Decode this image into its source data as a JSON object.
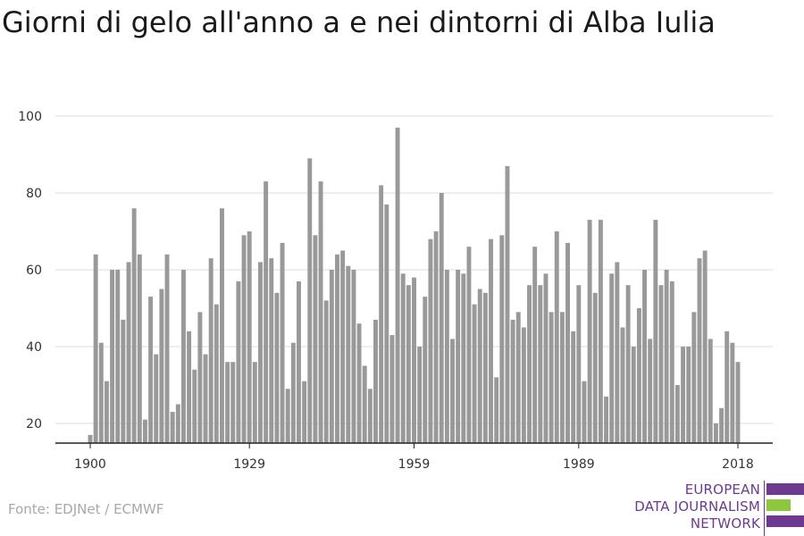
{
  "title": "Giorni di gelo all'anno a e nei dintorni di Alba Iulia",
  "source": "Fonte: EDJNet / ECMWF",
  "logo": {
    "lines": [
      "EUROPEAN",
      "DATA JOURNALISM",
      "NETWORK"
    ],
    "colors": {
      "purple": "#6d3a90",
      "green": "#8dc63f"
    }
  },
  "chart_data": {
    "type": "bar",
    "title": "Giorni di gelo all'anno a e nei dintorni di Alba Iulia",
    "xlabel": "",
    "ylabel": "",
    "x_start": 1900,
    "x": [
      1900,
      1901,
      1902,
      1903,
      1904,
      1905,
      1906,
      1907,
      1908,
      1909,
      1910,
      1911,
      1912,
      1913,
      1914,
      1915,
      1916,
      1917,
      1918,
      1919,
      1920,
      1921,
      1922,
      1923,
      1924,
      1925,
      1926,
      1927,
      1928,
      1929,
      1930,
      1931,
      1932,
      1933,
      1934,
      1935,
      1936,
      1937,
      1938,
      1939,
      1940,
      1941,
      1942,
      1943,
      1944,
      1945,
      1946,
      1947,
      1948,
      1949,
      1950,
      1951,
      1952,
      1953,
      1954,
      1955,
      1956,
      1957,
      1958,
      1959,
      1960,
      1961,
      1962,
      1963,
      1964,
      1965,
      1966,
      1967,
      1968,
      1969,
      1970,
      1971,
      1972,
      1973,
      1974,
      1975,
      1976,
      1977,
      1978,
      1979,
      1980,
      1981,
      1982,
      1983,
      1984,
      1985,
      1986,
      1987,
      1988,
      1989,
      1990,
      1991,
      1992,
      1993,
      1994,
      1995,
      1996,
      1997,
      1998,
      1999,
      2000,
      2001,
      2002,
      2003,
      2004,
      2005,
      2006,
      2007,
      2008,
      2009,
      2010,
      2011,
      2012,
      2013,
      2014,
      2015,
      2016,
      2017,
      2018
    ],
    "values": [
      17,
      64,
      41,
      31,
      60,
      60,
      47,
      62,
      76,
      64,
      21,
      53,
      38,
      55,
      64,
      23,
      25,
      60,
      44,
      34,
      49,
      38,
      63,
      51,
      76,
      36,
      36,
      57,
      69,
      70,
      36,
      62,
      83,
      63,
      54,
      67,
      29,
      41,
      57,
      31,
      89,
      69,
      83,
      52,
      60,
      64,
      65,
      61,
      60,
      46,
      35,
      29,
      47,
      82,
      77,
      43,
      97,
      59,
      56,
      58,
      40,
      53,
      68,
      70,
      80,
      60,
      42,
      60,
      59,
      66,
      51,
      55,
      54,
      68,
      32,
      69,
      87,
      47,
      49,
      45,
      56,
      66,
      56,
      59,
      49,
      70,
      49,
      67,
      44,
      56,
      31,
      73,
      54,
      73,
      27,
      59,
      62,
      45,
      56,
      40,
      50,
      60,
      42,
      73,
      56,
      60,
      57,
      30,
      40,
      40,
      49,
      63,
      65,
      42,
      20,
      24,
      44,
      41,
      36
    ],
    "x_ticks": [
      "1900",
      "1929",
      "1959",
      "1989",
      "2018"
    ],
    "y_ticks": [
      "20",
      "40",
      "60",
      "80",
      "100"
    ],
    "ylim": [
      15,
      100
    ],
    "bar_color": "#999999",
    "grid": true
  }
}
